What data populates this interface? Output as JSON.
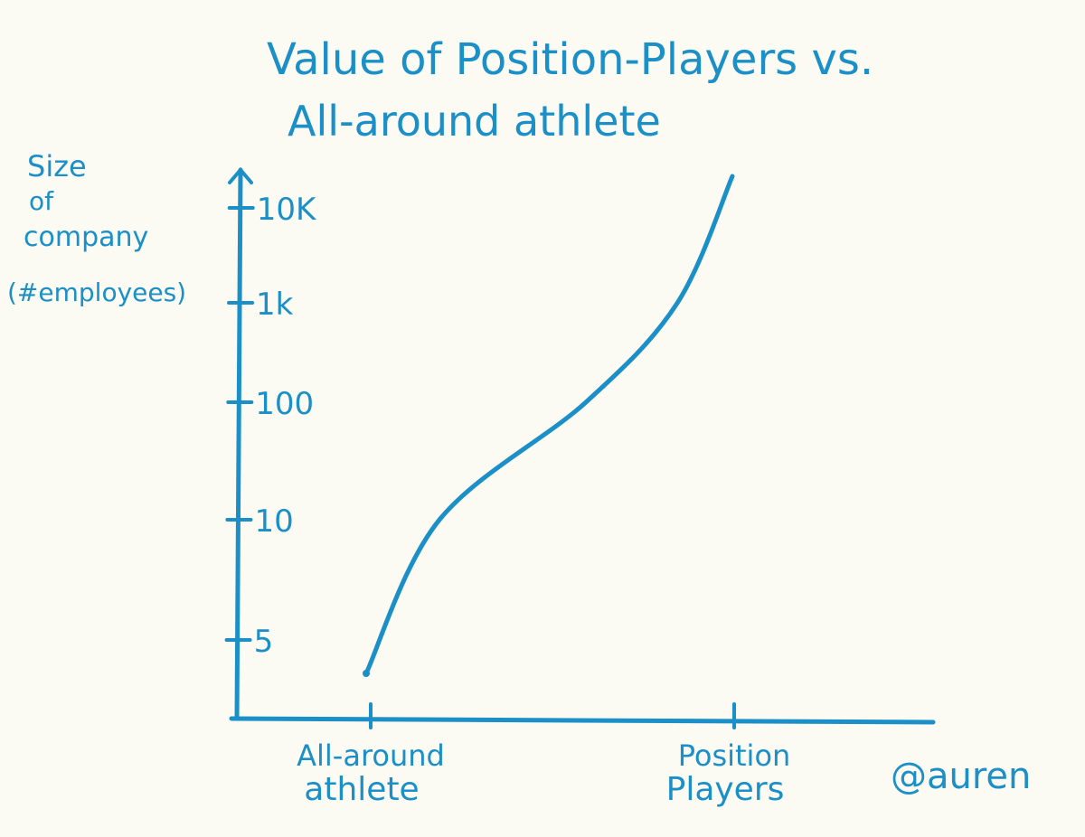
{
  "chart_data": {
    "type": "line",
    "title_line1": "Value of Position-Players vs.",
    "title_line2": "All-around athlete",
    "ylabel_lines": [
      "Size",
      "of",
      "company",
      "(#employees)"
    ],
    "categories": [
      "All-around athlete",
      "Position Players"
    ],
    "y_ticks": [
      "5",
      "10",
      "100",
      "1k",
      "10K"
    ],
    "y_scale": "ordinal (5, 10, 100, 1k, 10K)",
    "series": [
      {
        "points": [
          {
            "x": 0.0,
            "y": "below 5"
          },
          {
            "x": 0.2,
            "y": 10
          },
          {
            "x": 0.6,
            "y": 100
          },
          {
            "x": 0.85,
            "y": 1000
          },
          {
            "x": 1.0,
            "y": "above 10K"
          }
        ]
      }
    ],
    "credit": "@auren",
    "grid": false,
    "ink_color": "#1b8fc7"
  }
}
